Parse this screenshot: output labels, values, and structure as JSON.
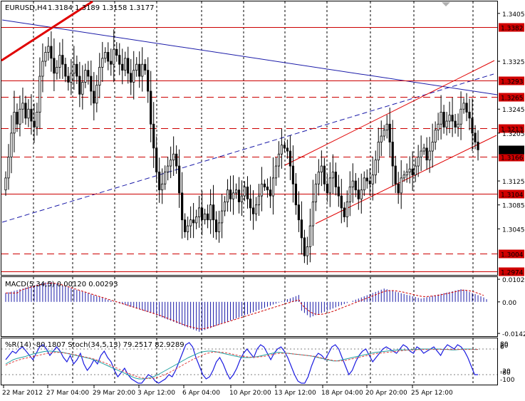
{
  "window": {
    "symbol_timeframe": "EURUSD,H4",
    "ohlc": "1.3184 1.3189 1.3158 1.3177"
  },
  "colors": {
    "background": "#ffffff",
    "candle": "#000000",
    "grid": "#000000",
    "horizontal_level": "#cc0000",
    "level_tag": "#d00000",
    "current_price_tag": "#000000",
    "channel": "#e00000",
    "trendline": "#1a1aa8",
    "macd_histogram": "#1a1aa8",
    "macd_signal": "#d00000",
    "wpr_line": "#1a1ae0",
    "stoch_main": "#20a0a0",
    "stoch_signal": "#e04040"
  },
  "price_axis": {
    "ticks": [
      "1.3405",
      "1.3325",
      "1.3245",
      "1.3205",
      "1.3125",
      "1.3085",
      "1.3045"
    ]
  },
  "levels": [
    {
      "value": "1.3382",
      "style": "solid"
    },
    {
      "value": "1.3293",
      "style": "solid"
    },
    {
      "value": "1.3265",
      "style": "dashed"
    },
    {
      "value": "1.3213",
      "style": "dashed"
    },
    {
      "value": "1.3166",
      "style": "dashed"
    },
    {
      "value": "1.3104",
      "style": "solid"
    },
    {
      "value": "1.3004",
      "style": "dashed"
    },
    {
      "value": "1.2974",
      "style": "solid"
    }
  ],
  "current_price": "1.3177",
  "macd": {
    "label": "MACD(5,34,5) 0.00120 0.00293",
    "axis_ticks": [
      "0.01021",
      "0.00",
      "-0.01425"
    ]
  },
  "oscillator": {
    "label": "%R(14) -80.1807  Stoch(34,5,13) 79.2517 82.9289",
    "axis_ticks": [
      "80",
      "20",
      "0",
      "-20",
      "-80",
      "-100"
    ]
  },
  "time_axis": {
    "labels": [
      "22 Mar 2012",
      "27 Mar 04:00",
      "29 Mar 20:00",
      "3 Apr 12:00",
      "6 Apr 04:00",
      "10 Apr 20:00",
      "13 Apr 12:00",
      "18 Apr 04:00",
      "20 Apr 20:00",
      "25 Apr 12:00"
    ]
  },
  "chart_data": [
    {
      "type": "candlestick",
      "title": "EURUSD,H4",
      "ylim": [
        1.2968,
        1.3425
      ],
      "series": [
        {
          "name": "EURUSD,H4",
          "close": [
            1.313,
            1.3165,
            1.3205,
            1.324,
            1.322,
            1.3245,
            1.3255,
            1.323,
            1.3245,
            1.3225,
            1.3215,
            1.324,
            1.33,
            1.3325,
            1.334,
            1.335,
            1.333,
            1.3305,
            1.3315,
            1.3335,
            1.332,
            1.33,
            1.329,
            1.3305,
            1.332,
            1.33,
            1.327,
            1.329,
            1.331,
            1.33,
            1.3275,
            1.3255,
            1.3285,
            1.3315,
            1.333,
            1.334,
            1.3325,
            1.332,
            1.3345,
            1.3335,
            1.332,
            1.331,
            1.333,
            1.3305,
            1.329,
            1.331,
            1.332,
            1.33,
            1.332,
            1.331,
            1.3275,
            1.322,
            1.318,
            1.314,
            1.311,
            1.312,
            1.314,
            1.315,
            1.316,
            1.317,
            1.315,
            1.3105,
            1.306,
            1.304,
            1.305,
            1.306,
            1.3055,
            1.3065,
            1.308,
            1.306,
            1.307,
            1.306,
            1.3085,
            1.306,
            1.304,
            1.3055,
            1.3075,
            1.309,
            1.311,
            1.3095,
            1.3105,
            1.311,
            1.309,
            1.31,
            1.3115,
            1.3095,
            1.308,
            1.307,
            1.3085,
            1.31,
            1.312,
            1.3115,
            1.311,
            1.31,
            1.313,
            1.315,
            1.317,
            1.3185,
            1.318,
            1.3175,
            1.315,
            1.312,
            1.3085,
            1.306,
            1.303,
            1.3,
            1.3015,
            1.305,
            1.309,
            1.312,
            1.314,
            1.315,
            1.312,
            1.3105,
            1.313,
            1.314,
            1.3115,
            1.31,
            1.308,
            1.3065,
            1.309,
            1.3115,
            1.3125,
            1.311,
            1.3095,
            1.311,
            1.313,
            1.3125,
            1.312,
            1.3135,
            1.316,
            1.319,
            1.32,
            1.321,
            1.322,
            1.319,
            1.315,
            1.312,
            1.3105,
            1.313,
            1.3135,
            1.314,
            1.3145,
            1.3135,
            1.315,
            1.3165,
            1.3175,
            1.318,
            1.316,
            1.3175,
            1.319,
            1.321,
            1.322,
            1.324,
            1.3215,
            1.3225,
            1.3235,
            1.3225,
            1.3215,
            1.322,
            1.3245,
            1.3255,
            1.324,
            1.323,
            1.3205,
            1.319,
            1.3177
          ]
        }
      ]
    },
    {
      "type": "bar",
      "title": "MACD(5,34,5) 0.00120 0.00293",
      "ylim": [
        -0.0155,
        0.0112
      ],
      "series": [
        {
          "name": "MACD",
          "values": [
            0.004,
            0.0043,
            0.0046,
            0.005,
            0.0053,
            0.0057,
            0.006,
            0.0064,
            0.0067,
            0.0071,
            0.0074,
            0.0078,
            0.0081,
            0.0085,
            0.0088,
            0.0092,
            0.009,
            0.0086,
            0.0082,
            0.0078,
            0.0074,
            0.007,
            0.0066,
            0.0062,
            0.0058,
            0.0054,
            0.005,
            0.0046,
            0.0042,
            0.0038,
            0.0034,
            0.003,
            0.0026,
            0.0022,
            0.0018,
            0.0014,
            0.001,
            0.0006,
            0.0002,
            -0.0002,
            -0.0006,
            -0.001,
            -0.0014,
            -0.0018,
            -0.0022,
            -0.0026,
            -0.003,
            -0.0034,
            -0.0038,
            -0.0042,
            -0.0046,
            -0.005,
            -0.0054,
            -0.006,
            -0.0065,
            -0.007,
            -0.0075,
            -0.008,
            -0.0085,
            -0.009,
            -0.0095,
            -0.01,
            -0.0105,
            -0.011,
            -0.0115,
            -0.012,
            -0.0125,
            -0.013,
            -0.0135,
            -0.0131,
            -0.0127,
            -0.0122,
            -0.0118,
            -0.0113,
            -0.0108,
            -0.0104,
            -0.0099,
            -0.0094,
            -0.0089,
            -0.0084,
            -0.008,
            -0.0075,
            -0.007,
            -0.0065,
            -0.006,
            -0.0056,
            -0.0051,
            -0.0046,
            -0.0041,
            -0.0036,
            -0.0032,
            -0.0027,
            -0.0022,
            -0.0017,
            -0.0012,
            -0.0008,
            -0.0003,
            0.0002,
            0.0007,
            0.0012,
            0.0016,
            0.0021,
            0.0026,
            0.0031,
            -0.004,
            -0.005,
            -0.006,
            -0.007,
            -0.0065,
            -0.006,
            -0.0055,
            -0.005,
            -0.0045,
            -0.004,
            -0.0035,
            -0.003,
            -0.0025,
            -0.002,
            -0.0015,
            -0.001,
            -0.0005,
            0.0,
            0.0005,
            0.001,
            0.0015,
            0.002,
            0.0025,
            0.003,
            0.0035,
            0.004,
            0.0045,
            0.005,
            0.0055,
            0.006,
            0.0057,
            0.0053,
            0.005,
            0.0046,
            0.0043,
            0.0039,
            0.0036,
            0.0032,
            0.0029,
            0.0025,
            0.0022,
            0.0018,
            0.0015,
            0.0018,
            0.0021,
            0.0024,
            0.0027,
            0.003,
            0.0033,
            0.0036,
            0.0039,
            0.0042,
            0.0045,
            0.0048,
            0.0051,
            0.0054,
            0.0057,
            0.0055,
            0.005,
            0.0045,
            0.004,
            0.0035,
            0.003,
            0.0025,
            0.002,
            0.0012
          ]
        },
        {
          "name": "Signal",
          "values": [
            0.004,
            0.004,
            0.004,
            0.004,
            0.004,
            0.005,
            0.0055,
            0.006,
            0.0063,
            0.0067,
            0.007,
            0.0074,
            0.0077,
            0.008,
            0.0082,
            0.0084,
            0.0085,
            0.0084,
            0.0082,
            0.008,
            0.0076,
            0.0072,
            0.0068,
            0.0064,
            0.006,
            0.0056,
            0.0052,
            0.0048,
            0.0044,
            0.004,
            0.0036,
            0.0032,
            0.0028,
            0.0024,
            0.002,
            0.0016,
            0.0012,
            0.0008,
            0.0004,
            0.0,
            -0.0004,
            -0.0008,
            -0.0012,
            -0.0016,
            -0.002,
            -0.0024,
            -0.0028,
            -0.0032,
            -0.0036,
            -0.004,
            -0.0044,
            -0.0048,
            -0.0052,
            -0.0056,
            -0.006,
            -0.0065,
            -0.007,
            -0.0075,
            -0.008,
            -0.0085,
            -0.009,
            -0.0095,
            -0.01,
            -0.0105,
            -0.011,
            -0.0113,
            -0.0116,
            -0.0119,
            -0.0122,
            -0.0122,
            -0.012,
            -0.0117,
            -0.0114,
            -0.011,
            -0.0106,
            -0.0102,
            -0.0098,
            -0.0094,
            -0.009,
            -0.0086,
            -0.0082,
            -0.0078,
            -0.0074,
            -0.007,
            -0.0066,
            -0.0062,
            -0.0058,
            -0.0054,
            -0.005,
            -0.0046,
            -0.0042,
            -0.0038,
            -0.0034,
            -0.003,
            -0.0026,
            -0.0022,
            -0.0018,
            -0.0014,
            -0.001,
            -0.0006,
            -0.0002,
            0.0002,
            0.0006,
            0.001,
            -0.001,
            -0.0025,
            -0.0035,
            -0.0045,
            -0.0052,
            -0.0056,
            -0.0057,
            -0.0056,
            -0.0054,
            -0.0051,
            -0.0047,
            -0.0043,
            -0.0038,
            -0.0033,
            -0.0028,
            -0.0023,
            -0.0018,
            -0.0013,
            -0.0008,
            -0.0003,
            0.0002,
            0.0007,
            0.0012,
            0.0017,
            0.0022,
            0.0027,
            0.0032,
            0.0037,
            0.0042,
            0.0047,
            0.005,
            0.0051,
            0.0051,
            0.005,
            0.0048,
            0.0046,
            0.0043,
            0.004,
            0.0037,
            0.0034,
            0.0031,
            0.0028,
            0.0025,
            0.0024,
            0.0024,
            0.0025,
            0.0026,
            0.0028,
            0.003,
            0.0032,
            0.0035,
            0.0037,
            0.004,
            0.0043,
            0.0046,
            0.0049,
            0.0052,
            0.0053,
            0.0052,
            0.005,
            0.0047,
            0.0043,
            0.0039,
            0.0034,
            0.0029
          ]
        }
      ]
    },
    {
      "type": "line",
      "title": "%R(14) -80.1807  Stoch(34,5,13) 79.2517 82.9289",
      "ylim": [
        -100,
        0
      ],
      "series": [
        {
          "name": "%R(14)",
          "values": [
            -45,
            -35,
            -25,
            -30,
            -20,
            -15,
            -25,
            -35,
            -45,
            -30,
            -15,
            -10,
            -20,
            -35,
            -25,
            -15,
            -25,
            -40,
            -50,
            -35,
            -55,
            -45,
            -30,
            -55,
            -70,
            -60,
            -45,
            -55,
            -35,
            -25,
            -40,
            -50,
            -70,
            -85,
            -75,
            -65,
            -80,
            -90,
            -95,
            -100,
            -100,
            -90,
            -80,
            -85,
            -95,
            -100,
            -95,
            -90,
            -80,
            -85,
            -70,
            -50,
            -30,
            -10,
            -5,
            -15,
            -40,
            -60,
            -80,
            -90,
            -85,
            -70,
            -50,
            -40,
            -55,
            -75,
            -90,
            -80,
            -65,
            -45,
            -30,
            -20,
            -30,
            -40,
            -20,
            -10,
            -15,
            -30,
            -45,
            -30,
            -20,
            -15,
            -25,
            -40,
            -60,
            -80,
            -95,
            -100,
            -100,
            -85,
            -60,
            -40,
            -30,
            -35,
            -45,
            -30,
            -15,
            -10,
            -20,
            -40,
            -60,
            -80,
            -70,
            -50,
            -35,
            -25,
            -20,
            -35,
            -50,
            -40,
            -30,
            -20,
            -15,
            -20,
            -25,
            -30,
            -20,
            -10,
            -15,
            -25,
            -30,
            -15,
            -20,
            -30,
            -25,
            -20,
            -15,
            -25,
            -35,
            -20,
            -10,
            -15,
            -20,
            -10,
            -15,
            -25,
            -40,
            -60,
            -80,
            -80
          ]
        },
        {
          "name": "Stoch main",
          "values": [
            -55,
            -50,
            -45,
            -42,
            -40,
            -38,
            -35,
            -32,
            -30,
            -28,
            -26,
            -25,
            -25,
            -26,
            -27,
            -28,
            -30,
            -32,
            -34,
            -36,
            -38,
            -40,
            -42,
            -45,
            -48,
            -52,
            -56,
            -60,
            -64,
            -68,
            -72,
            -76,
            -80,
            -84,
            -88,
            -90,
            -90,
            -89,
            -87,
            -84,
            -80,
            -75,
            -70,
            -65,
            -60,
            -55,
            -50,
            -45,
            -40,
            -36,
            -32,
            -28,
            -26,
            -25,
            -25,
            -26,
            -28,
            -30,
            -32,
            -34,
            -36,
            -38,
            -40,
            -40,
            -40,
            -39,
            -38,
            -36,
            -34,
            -32,
            -30,
            -28,
            -28,
            -29,
            -30,
            -31,
            -32,
            -33,
            -34,
            -35,
            -36,
            -38,
            -40,
            -42,
            -44,
            -46,
            -48,
            -48,
            -46,
            -44,
            -42,
            -40,
            -38,
            -36,
            -34,
            -32,
            -30,
            -28,
            -27,
            -26,
            -25,
            -24,
            -23,
            -22,
            -22,
            -22,
            -22,
            -21,
            -21,
            -20,
            -20,
            -20,
            -20,
            -20,
            -20,
            -21,
            -21,
            -22,
            -22,
            -21,
            -20,
            -20,
            -20,
            -21,
            -21
          ]
        },
        {
          "name": "Stoch signal",
          "values": [
            -58,
            -54,
            -50,
            -47,
            -44,
            -42,
            -40,
            -38,
            -36,
            -34,
            -32,
            -30,
            -29,
            -28,
            -28,
            -29,
            -30,
            -31,
            -33,
            -35,
            -37,
            -39,
            -41,
            -43,
            -46,
            -49,
            -52,
            -56,
            -60,
            -64,
            -68,
            -72,
            -76,
            -80,
            -83,
            -86,
            -88,
            -89,
            -89,
            -88,
            -86,
            -83,
            -79,
            -75,
            -70,
            -65,
            -60,
            -55,
            -50,
            -45,
            -41,
            -37,
            -33,
            -30,
            -28,
            -27,
            -27,
            -28,
            -29,
            -31,
            -33,
            -35,
            -37,
            -38,
            -39,
            -39,
            -39,
            -38,
            -37,
            -35,
            -33,
            -31,
            -30,
            -30,
            -30,
            -31,
            -32,
            -33,
            -34,
            -35,
            -36,
            -37,
            -39,
            -41,
            -43,
            -45,
            -47,
            -48,
            -48,
            -47,
            -45,
            -43,
            -41,
            -39,
            -37,
            -35,
            -33,
            -31,
            -30,
            -29,
            -28,
            -27,
            -26,
            -25,
            -24,
            -23,
            -23,
            -22,
            -22,
            -21,
            -21,
            -21,
            -21,
            -21,
            -21,
            -21,
            -21,
            -21,
            -21,
            -21,
            -21,
            -21,
            -21,
            -21,
            -21
          ]
        }
      ]
    }
  ]
}
